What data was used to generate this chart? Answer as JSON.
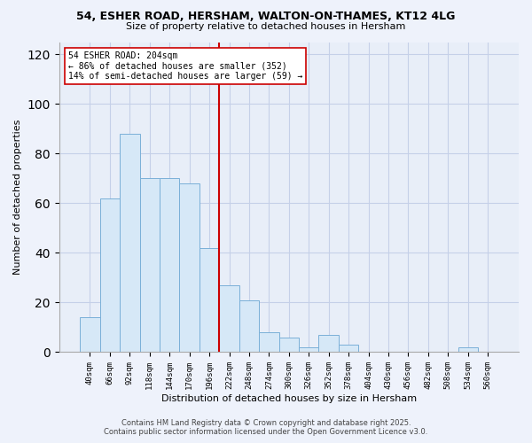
{
  "title1": "54, ESHER ROAD, HERSHAM, WALTON-ON-THAMES, KT12 4LG",
  "title2": "Size of property relative to detached houses in Hersham",
  "xlabel": "Distribution of detached houses by size in Hersham",
  "ylabel": "Number of detached properties",
  "bar_color": "#d6e8f7",
  "bar_edge_color": "#7ab0d8",
  "categories": [
    "40sqm",
    "66sqm",
    "92sqm",
    "118sqm",
    "144sqm",
    "170sqm",
    "196sqm",
    "222sqm",
    "248sqm",
    "274sqm",
    "300sqm",
    "326sqm",
    "352sqm",
    "378sqm",
    "404sqm",
    "430sqm",
    "456sqm",
    "482sqm",
    "508sqm",
    "534sqm",
    "560sqm"
  ],
  "values": [
    14,
    62,
    88,
    70,
    70,
    68,
    42,
    27,
    21,
    8,
    6,
    2,
    7,
    3,
    0,
    0,
    0,
    0,
    0,
    2,
    0
  ],
  "vline_color": "#cc0000",
  "annotation_title": "54 ESHER ROAD: 204sqm",
  "annotation_line1": "← 86% of detached houses are smaller (352)",
  "annotation_line2": "14% of semi-detached houses are larger (59) →",
  "footer1": "Contains HM Land Registry data © Crown copyright and database right 2025.",
  "footer2": "Contains public sector information licensed under the Open Government Licence v3.0.",
  "ylim": [
    0,
    125
  ],
  "yticks": [
    0,
    20,
    40,
    60,
    80,
    100,
    120
  ],
  "bg_color": "#eef2fb",
  "plot_bg_color": "#e8eef8",
  "grid_color": "#c5d0e8"
}
